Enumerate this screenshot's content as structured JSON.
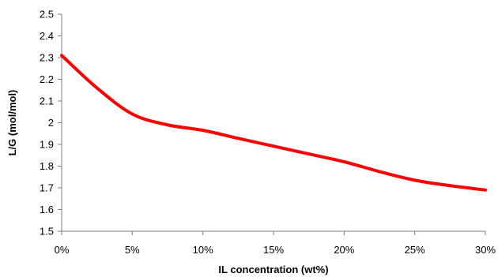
{
  "chart_data": {
    "type": "line",
    "title": "",
    "xlabel": "IL concentration (wt%)",
    "ylabel": "L/G (mol/mol)",
    "x": [
      0,
      2.5,
      5,
      7.5,
      10,
      12.5,
      15,
      17.5,
      20,
      22.5,
      25,
      27.5,
      30
    ],
    "y": [
      2.31,
      2.16,
      2.04,
      1.99,
      1.965,
      1.928,
      1.892,
      1.856,
      1.82,
      1.775,
      1.735,
      1.71,
      1.69
    ],
    "xlim": [
      0,
      30
    ],
    "ylim": [
      1.5,
      2.5
    ],
    "x_ticks": [
      0,
      5,
      10,
      15,
      20,
      25,
      30
    ],
    "x_tick_labels": [
      "0%",
      "5%",
      "10%",
      "15%",
      "20%",
      "25%",
      "30%"
    ],
    "y_ticks": [
      1.5,
      1.6,
      1.7,
      1.8,
      1.9,
      2,
      2.1,
      2.2,
      2.3,
      2.4,
      2.5
    ],
    "y_tick_labels": [
      "1.5",
      "1.6",
      "1.7",
      "1.8",
      "1.9",
      "2",
      "2.1",
      "2.2",
      "2.3",
      "2.4",
      "2.5"
    ],
    "grid": false,
    "line_color": "#ff0000",
    "axis_color": "#808080"
  }
}
